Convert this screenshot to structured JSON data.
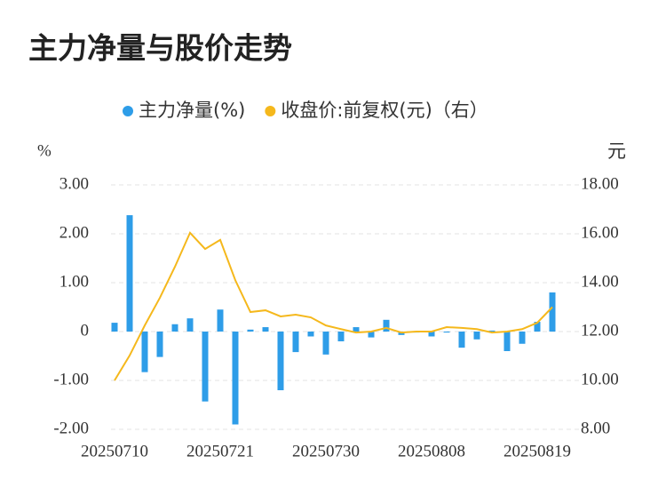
{
  "chart_data": {
    "type": "bar-line",
    "title": "主力净量与股价走势",
    "y_label": "%",
    "y2_label": "元",
    "categories": [
      "20250710",
      null,
      null,
      null,
      null,
      null,
      null,
      "20250721",
      null,
      null,
      null,
      null,
      null,
      null,
      "20250730",
      null,
      null,
      null,
      null,
      null,
      null,
      "20250808",
      null,
      null,
      null,
      null,
      null,
      null,
      "20250819",
      null
    ],
    "series": [
      {
        "name": "主力净量(%)",
        "type": "bar",
        "color": "#2e9de8",
        "values": [
          0.18,
          2.38,
          -0.83,
          -0.52,
          0.15,
          0.27,
          -1.43,
          0.45,
          -1.9,
          0.04,
          0.09,
          -1.2,
          -0.42,
          -0.1,
          -0.47,
          -0.2,
          0.09,
          -0.12,
          0.24,
          -0.07,
          -0.02,
          -0.1,
          -0.02,
          -0.33,
          -0.16,
          0.02,
          -0.4,
          -0.25,
          0.2,
          0.8
        ]
      },
      {
        "name": "收盘价:前复权(元)（右）",
        "type": "line",
        "axis": "y2",
        "color": "#f5b81c",
        "values": [
          10.0,
          11.02,
          12.25,
          13.38,
          14.65,
          16.04,
          15.38,
          15.75,
          14.1,
          12.8,
          12.87,
          12.62,
          12.69,
          12.58,
          12.25,
          12.1,
          11.96,
          12.0,
          12.15,
          11.96,
          12.0,
          12.0,
          12.18,
          12.15,
          12.1,
          11.96,
          12.0,
          12.1,
          12.36,
          13.0
        ]
      }
    ],
    "ylim": [
      -2,
      3
    ],
    "yticks": [
      {
        "value": -2,
        "label": "-2.00"
      },
      {
        "value": -1,
        "label": "-1.00"
      },
      0,
      {
        "value": 1,
        "label": "1.00"
      },
      {
        "value": 2,
        "label": "2.00"
      },
      {
        "value": 3,
        "label": "3.00"
      }
    ],
    "y2lim": [
      8,
      18
    ],
    "y2ticks": [
      {
        "value": 8,
        "label": "8.00"
      },
      {
        "value": 10,
        "label": "10.00"
      },
      {
        "value": 12,
        "label": "12.00"
      },
      {
        "value": 14,
        "label": "14.00"
      },
      {
        "value": 16,
        "label": "16.00"
      },
      {
        "value": 18,
        "label": "18.00"
      }
    ],
    "grid": true,
    "legend": "top"
  }
}
